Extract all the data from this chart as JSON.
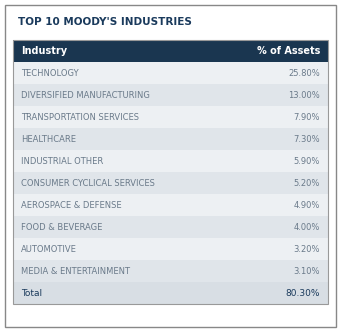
{
  "title": "TOP 10 MOODY'S INDUSTRIES",
  "header": [
    "Industry",
    "% of Assets"
  ],
  "rows": [
    [
      "TECHNOLOGY",
      "25.80%"
    ],
    [
      "DIVERSIFIED MANUFACTURING",
      "13.00%"
    ],
    [
      "TRANSPORTATION SERVICES",
      "7.90%"
    ],
    [
      "HEALTHCARE",
      "7.30%"
    ],
    [
      "INDUSTRIAL OTHER",
      "5.90%"
    ],
    [
      "CONSUMER CYCLICAL SERVICES",
      "5.20%"
    ],
    [
      "AEROSPACE & DEFENSE",
      "4.90%"
    ],
    [
      "FOOD & BEVERAGE",
      "4.00%"
    ],
    [
      "AUTOMOTIVE",
      "3.20%"
    ],
    [
      "MEDIA & ENTERTAINMENT",
      "3.10%"
    ]
  ],
  "total_row": [
    "Total",
    "80.30%"
  ],
  "title_color": "#1a3a5c",
  "header_bg": "#1a3650",
  "header_text_color": "#ffffff",
  "row_bg_odd": "#edf0f3",
  "row_bg_even": "#e0e5ea",
  "total_bg": "#d8dee4",
  "row_text_color": "#6a7a8a",
  "total_text_color": "#1a3a5c",
  "border_color": "#999999",
  "outer_border_color": "#888888",
  "fig_bg": "#ffffff"
}
